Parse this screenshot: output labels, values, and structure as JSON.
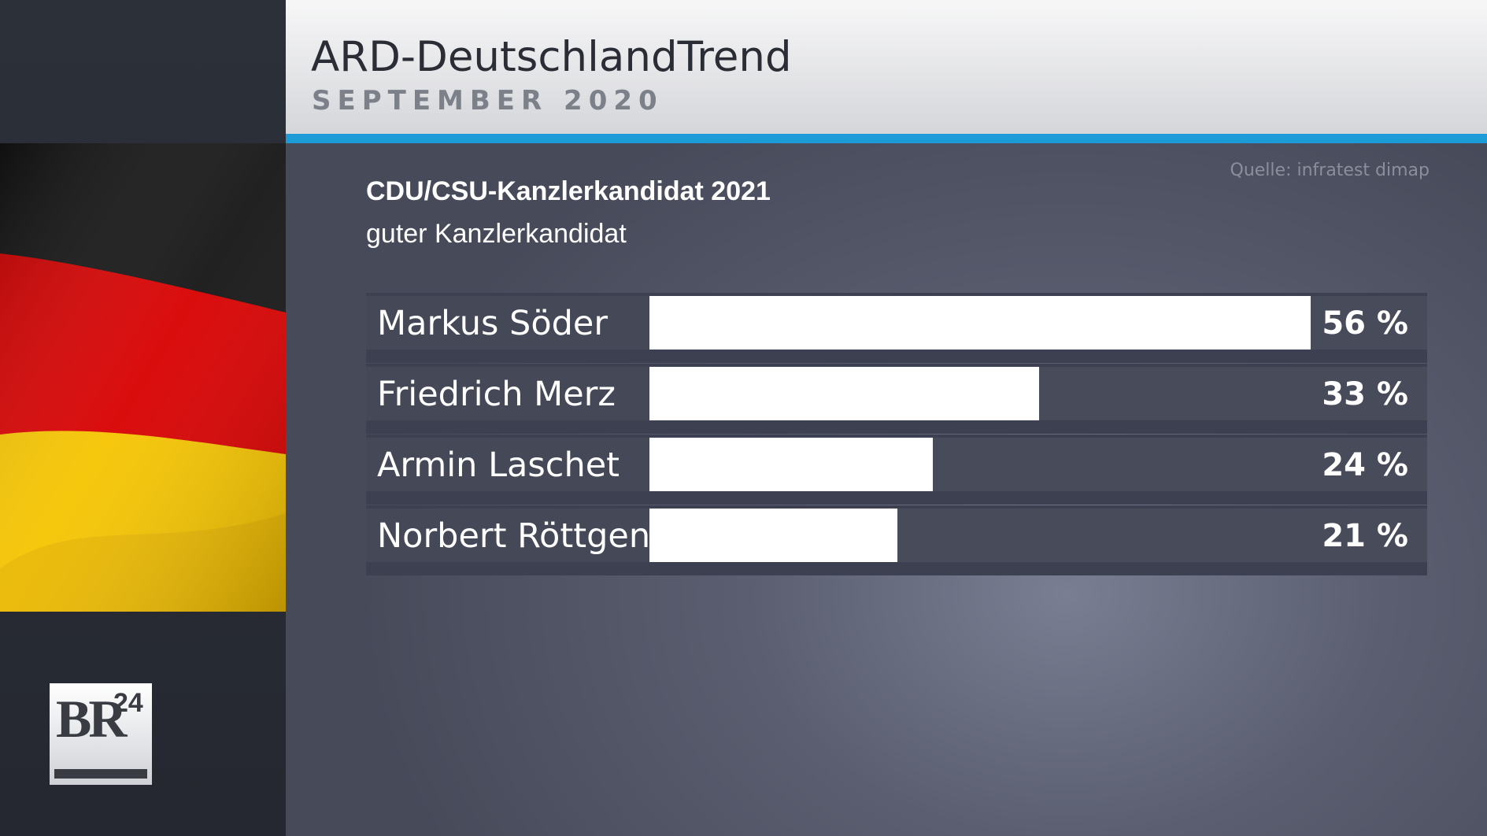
{
  "header": {
    "title": "ARD-DeutschlandTrend",
    "subtitle": "SEPTEMBER 2020"
  },
  "source": "Quelle: infratest dimap",
  "logo": {
    "text": "BR",
    "number": "24"
  },
  "colors": {
    "accent": "#1c9bd6",
    "bar": "#ffffff",
    "track": "#474b5a",
    "label_bg": "#454957",
    "flag_black": "#1a1a1a",
    "flag_red": "#dd0000",
    "flag_gold": "#ffce00"
  },
  "chart_data": {
    "type": "bar",
    "orientation": "horizontal",
    "title": "CDU/CSU-Kanzlerkandidat 2021",
    "subtitle": "guter Kanzlerkandidat",
    "categories": [
      "Markus Söder",
      "Friedrich Merz",
      "Armin Laschet",
      "Norbert Röttgen"
    ],
    "values": [
      56,
      33,
      24,
      21
    ],
    "value_labels": [
      "56 %",
      "33 %",
      "24 %",
      "21 %"
    ],
    "unit": "%",
    "xlim": [
      0,
      60
    ],
    "grid": false,
    "legend": "none"
  }
}
